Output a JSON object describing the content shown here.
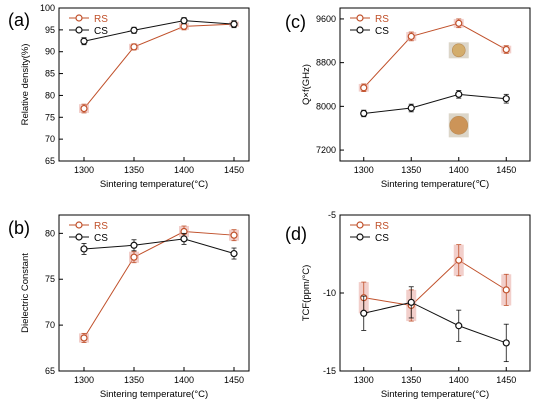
{
  "chart_data": [
    {
      "type": "line",
      "panel_label": "(a)",
      "xlabel": "Sintering temperature(°C)",
      "ylabel": "Relative density(%)",
      "x": [
        1300,
        1350,
        1400,
        1450
      ],
      "xticks": [
        "1300",
        "1350",
        "1400",
        "1450"
      ],
      "xlim": [
        1275,
        1465
      ],
      "ylim": [
        65,
        100
      ],
      "yticks": [
        "65",
        "70",
        "75",
        "80",
        "85",
        "90",
        "95",
        "100"
      ],
      "legend_position": "top-left",
      "series": [
        {
          "name": "RS",
          "color": "#c0502a",
          "values": [
            77.0,
            91.1,
            95.8,
            96.3
          ],
          "errors": [
            1.0,
            0.7,
            0.8,
            0.6
          ]
        },
        {
          "name": "CS",
          "color": "#111111",
          "values": [
            92.4,
            94.9,
            97.1,
            96.3
          ],
          "errors": [
            0.8,
            0.7,
            0.7,
            0.8
          ]
        }
      ]
    },
    {
      "type": "line",
      "panel_label": "(c)",
      "xlabel": "Sintering temperature(℃)",
      "ylabel": "Q×f(GHz)",
      "x": [
        1300,
        1350,
        1400,
        1450
      ],
      "xticks": [
        "1300",
        "1350",
        "1400",
        "1450"
      ],
      "xlim": [
        1275,
        1475
      ],
      "ylim": [
        7000,
        9800
      ],
      "yticks": [
        "7200",
        "8000",
        "8800",
        "9600"
      ],
      "legend_position": "top-left",
      "inset_images": [
        "RS pellet",
        "CS pellet"
      ],
      "series": [
        {
          "name": "RS",
          "color": "#c0502a",
          "values": [
            8340,
            9280,
            9520,
            9040
          ],
          "errors": [
            70,
            80,
            80,
            70
          ]
        },
        {
          "name": "CS",
          "color": "#111111",
          "values": [
            7870,
            7970,
            8220,
            8140
          ],
          "errors": [
            60,
            70,
            70,
            80
          ]
        }
      ]
    },
    {
      "type": "line",
      "panel_label": "(b)",
      "xlabel": "Sintering temperature(°C)",
      "ylabel": "Dielectric Constant",
      "x": [
        1300,
        1350,
        1400,
        1450
      ],
      "xticks": [
        "1300",
        "1350",
        "1400",
        "1450"
      ],
      "xlim": [
        1275,
        1465
      ],
      "ylim": [
        65,
        82
      ],
      "yticks": [
        "65",
        "70",
        "75",
        "80"
      ],
      "legend_position": "top-left",
      "series": [
        {
          "name": "RS",
          "color": "#c0502a",
          "values": [
            68.6,
            77.4,
            80.2,
            79.8
          ],
          "errors": [
            0.5,
            0.6,
            0.6,
            0.6
          ]
        },
        {
          "name": "CS",
          "color": "#111111",
          "values": [
            78.3,
            78.7,
            79.4,
            77.8
          ],
          "errors": [
            0.6,
            0.6,
            0.6,
            0.6
          ]
        }
      ]
    },
    {
      "type": "line",
      "panel_label": "(d)",
      "xlabel": "Sintering temperature(°C)",
      "ylabel": "TCF(ppm/°C)",
      "x": [
        1300,
        1350,
        1400,
        1450
      ],
      "xticks": [
        "1300",
        "1350",
        "1400",
        "1450"
      ],
      "xlim": [
        1275,
        1475
      ],
      "ylim": [
        -15,
        -5
      ],
      "yticks": [
        "-5",
        "-10",
        "-15"
      ],
      "legend_position": "top-left",
      "series": [
        {
          "name": "RS",
          "color": "#c0502a",
          "values": [
            -10.3,
            -10.8,
            -7.9,
            -9.8
          ],
          "errors": [
            1.0,
            1.0,
            1.0,
            1.0
          ]
        },
        {
          "name": "CS",
          "color": "#111111",
          "values": [
            -11.3,
            -10.6,
            -12.1,
            -13.2
          ],
          "errors": [
            1.1,
            1.0,
            1.0,
            1.2
          ]
        }
      ]
    }
  ]
}
